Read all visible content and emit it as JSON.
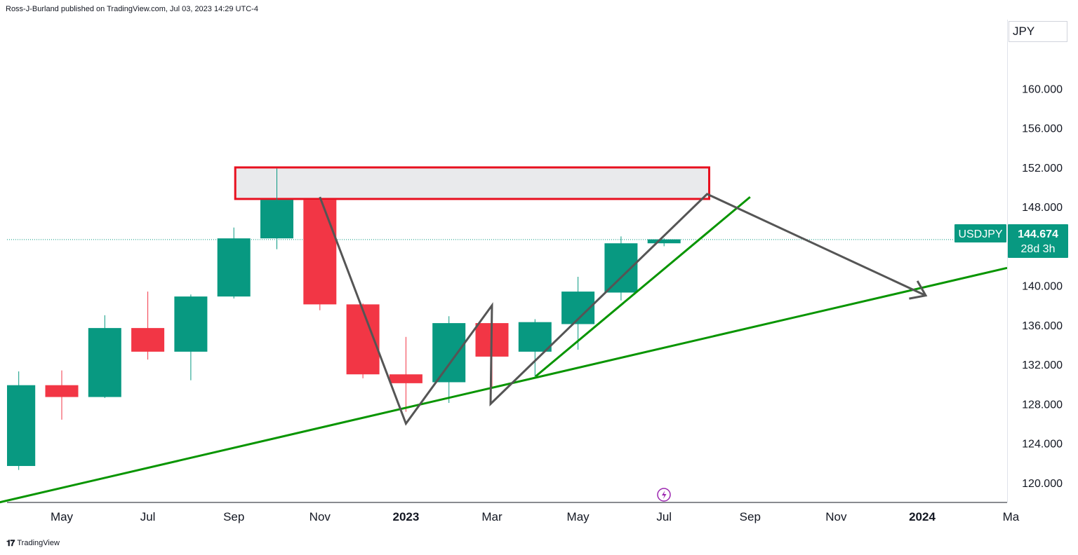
{
  "header": {
    "publish_line": "Ross-J-Burland published on TradingView.com, Jul 03, 2023 14:29 UTC-4"
  },
  "footer": {
    "logo_mark": "𝟏𝟕",
    "brand": "TradingView"
  },
  "price_scale": {
    "currency": "JPY",
    "symbol": "USDJPY",
    "last_price_label": "144.674",
    "countdown": "28d 3h"
  },
  "colors": {
    "up": "#089981",
    "down": "#f23645",
    "trend_green": "#089500",
    "pattern_gray": "#555555",
    "zone_border": "#e8101f",
    "zone_fill": "#e9eaec",
    "label_bg": "#089981"
  },
  "chart_data": {
    "type": "candlestick",
    "title": "",
    "interval": "monthly",
    "ylim": [
      118.0,
      167.0
    ],
    "y_ticks": [
      120,
      124,
      128,
      132,
      136,
      140,
      144,
      148,
      152,
      156,
      160
    ],
    "y_tick_labels": [
      "120.000",
      "124.000",
      "128.000",
      "132.000",
      "136.000",
      "140.000",
      "144.000",
      "148.000",
      "152.000",
      "156.000",
      "160.000"
    ],
    "x_axis_labels": [
      {
        "month": "2022-05",
        "text": "May",
        "bold": false
      },
      {
        "month": "2022-07",
        "text": "Jul",
        "bold": false
      },
      {
        "month": "2022-09",
        "text": "Sep",
        "bold": false
      },
      {
        "month": "2022-11",
        "text": "Nov",
        "bold": false
      },
      {
        "month": "2023-01",
        "text": "2023",
        "bold": true
      },
      {
        "month": "2023-03",
        "text": "Mar",
        "bold": false
      },
      {
        "month": "2023-05",
        "text": "May",
        "bold": false
      },
      {
        "month": "2023-07",
        "text": "Jul",
        "bold": false
      },
      {
        "month": "2023-09",
        "text": "Sep",
        "bold": false
      },
      {
        "month": "2023-11",
        "text": "Nov",
        "bold": false
      },
      {
        "month": "2024-01",
        "text": "2024",
        "bold": true
      },
      {
        "month": "2024-03",
        "text": "Ma",
        "bold": false
      }
    ],
    "candles": [
      {
        "month": "2022-04",
        "open": 121.7,
        "high": 131.3,
        "low": 121.3,
        "close": 129.9
      },
      {
        "month": "2022-05",
        "open": 129.9,
        "high": 131.4,
        "low": 126.4,
        "close": 128.7
      },
      {
        "month": "2022-06",
        "open": 128.7,
        "high": 137.0,
        "low": 128.6,
        "close": 135.7
      },
      {
        "month": "2022-07",
        "open": 135.7,
        "high": 139.4,
        "low": 132.5,
        "close": 133.3
      },
      {
        "month": "2022-08",
        "open": 133.3,
        "high": 139.1,
        "low": 130.4,
        "close": 138.9
      },
      {
        "month": "2022-09",
        "open": 138.9,
        "high": 145.9,
        "low": 138.7,
        "close": 144.8
      },
      {
        "month": "2022-10",
        "open": 144.8,
        "high": 151.9,
        "low": 143.7,
        "close": 148.7
      },
      {
        "month": "2022-11",
        "open": 148.7,
        "high": 148.9,
        "low": 137.5,
        "close": 138.1
      },
      {
        "month": "2022-12",
        "open": 138.1,
        "high": 138.2,
        "low": 130.6,
        "close": 131.0
      },
      {
        "month": "2023-01",
        "open": 131.0,
        "high": 134.8,
        "low": 127.2,
        "close": 130.1
      },
      {
        "month": "2023-02",
        "open": 130.2,
        "high": 136.9,
        "low": 128.1,
        "close": 136.2
      },
      {
        "month": "2023-03",
        "open": 136.2,
        "high": 137.9,
        "low": 129.6,
        "close": 132.8
      },
      {
        "month": "2023-04",
        "open": 133.3,
        "high": 136.6,
        "low": 130.7,
        "close": 136.3
      },
      {
        "month": "2023-05",
        "open": 136.1,
        "high": 140.9,
        "low": 133.5,
        "close": 139.4
      },
      {
        "month": "2023-06",
        "open": 139.3,
        "high": 145.0,
        "low": 138.5,
        "close": 144.3
      },
      {
        "month": "2023-07",
        "open": 144.3,
        "high": 144.8,
        "low": 144.0,
        "close": 144.7
      }
    ],
    "last_price": 144.674,
    "drawings": {
      "resistance_zone": {
        "from": "2022-09",
        "to": "2023-08",
        "low": 148.8,
        "high": 152.0
      },
      "rising_trendline": {
        "from": [
          "2022-04",
          118.0
        ],
        "to": [
          "2024-03",
          141.8
        ]
      },
      "short_trendline": {
        "from": [
          "2023-04",
          130.8
        ],
        "to": [
          "2023-09",
          149.0
        ]
      },
      "pattern_path": [
        [
          "2022-11",
          149.0
        ],
        [
          "2023-01",
          126.0
        ],
        [
          "2023-03",
          138.0
        ],
        [
          "2023-03",
          128.0
        ],
        [
          "2023-08",
          149.3
        ],
        [
          "2024-01",
          139.0
        ]
      ]
    }
  }
}
